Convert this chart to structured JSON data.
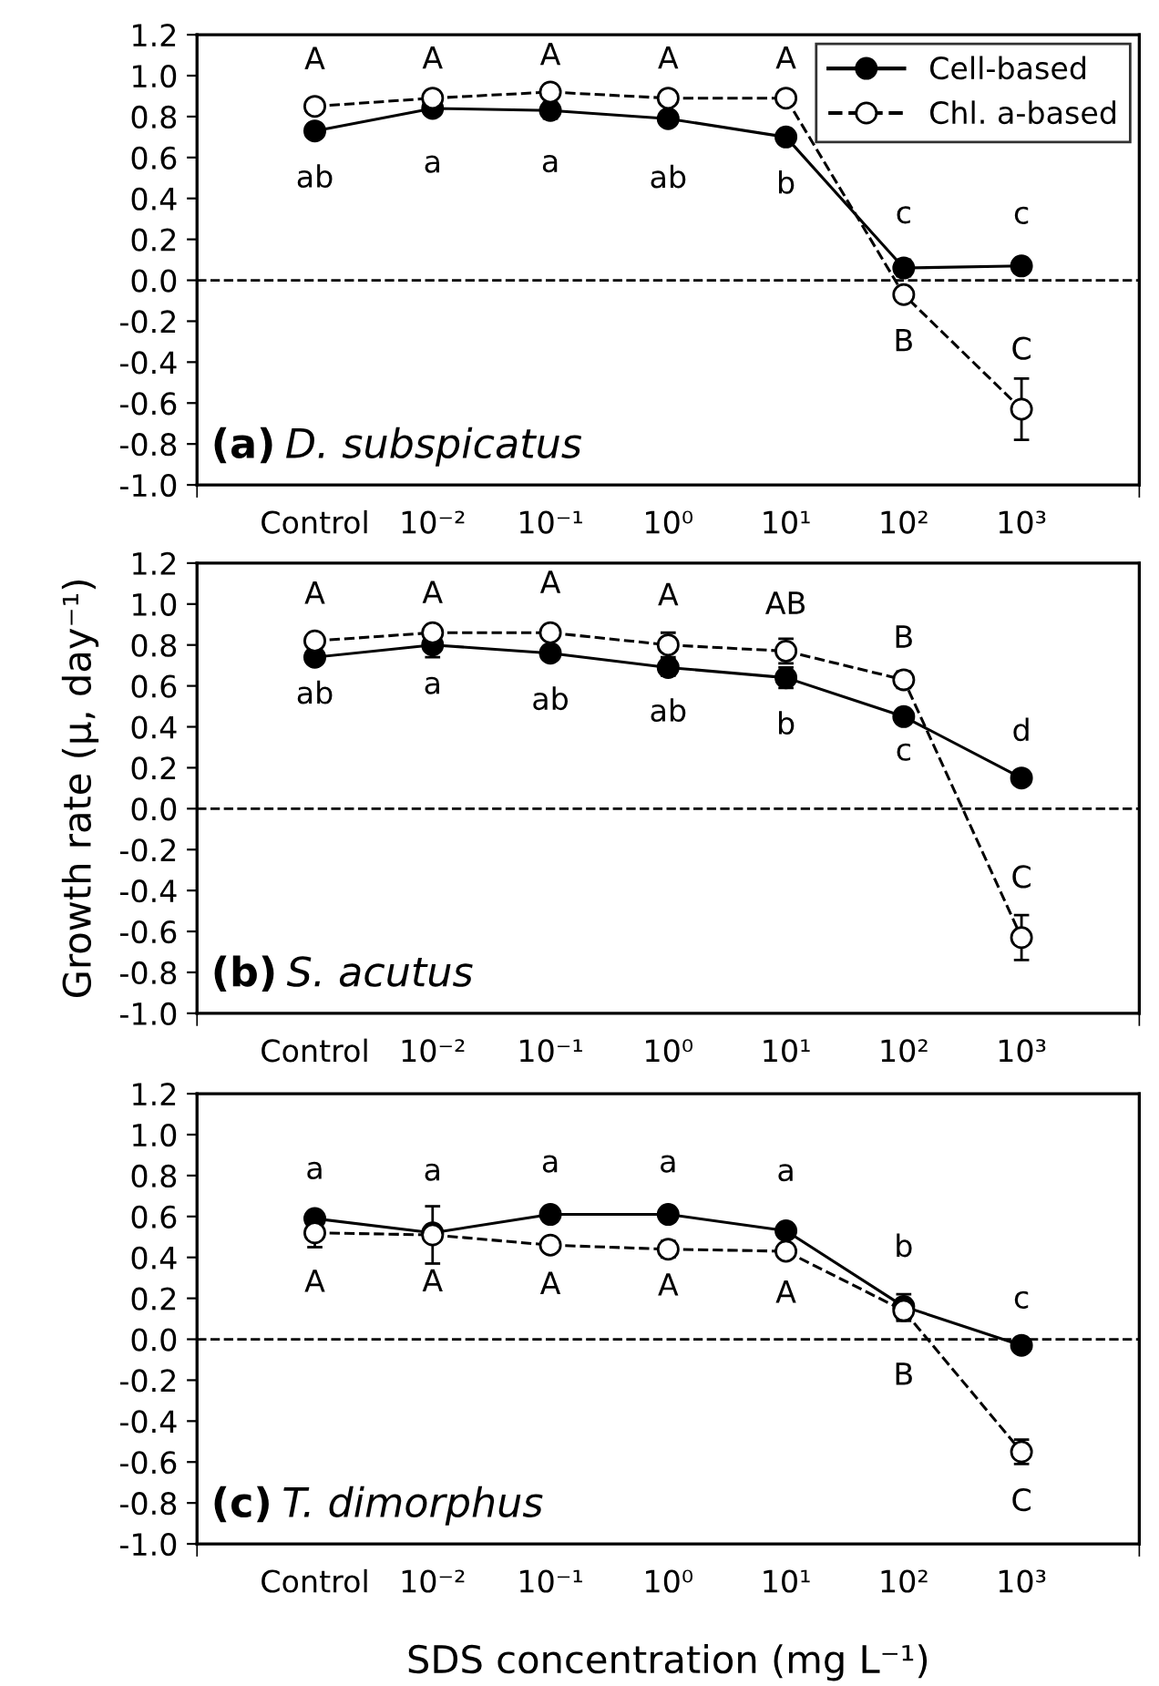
{
  "chart_data": [
    {
      "type": "line",
      "categories": [
        "Control",
        "10⁻²",
        "10⁻¹",
        "10⁰",
        "10¹",
        "10²",
        "10³"
      ],
      "ylim": [
        -1.0,
        1.2
      ],
      "yticks": [
        {
          "value": -1.0,
          "label": "-1.0"
        },
        {
          "value": -0.8,
          "label": "-0.8"
        },
        {
          "value": -0.6,
          "label": "-0.6"
        },
        {
          "value": -0.4,
          "label": "-0.4"
        },
        {
          "value": -0.2,
          "label": "-0.2"
        },
        {
          "value": 0.0,
          "label": "0.0"
        },
        {
          "value": 0.2,
          "label": "0.2"
        },
        {
          "value": 0.4,
          "label": "0.4"
        },
        {
          "value": 0.6,
          "label": "0.6"
        },
        {
          "value": 0.8,
          "label": "0.8"
        },
        {
          "value": 1.0,
          "label": "1.0"
        },
        {
          "value": 1.2,
          "label": "1.2"
        }
      ],
      "marker": "circle",
      "legend": "top right",
      "series": [
        {
          "name": "Cell-based",
          "color": "#000000",
          "line_style": "solid",
          "values": [
            0.73,
            0.84,
            0.83,
            0.79,
            0.7,
            0.06,
            0.07
          ],
          "errors": [
            0.02,
            0.02,
            0.04,
            0.03,
            0.02,
            0.04,
            0.01
          ]
        },
        {
          "name": "Chl. a-based",
          "color": "#ffffff",
          "line_style": "dashed",
          "values": [
            0.85,
            0.89,
            0.92,
            0.89,
            0.89,
            -0.07,
            -0.63
          ],
          "errors": [
            0.02,
            0.02,
            0.03,
            0.02,
            0.02,
            0.03,
            0.15
          ]
        }
      ],
      "ref_lines": [
        {
          "axis": "y",
          "value": 0,
          "color": "#000000",
          "line_style": "dashed"
        }
      ],
      "annotations": [
        "(a) D. subspicatus",
        "A",
        "A",
        "A",
        "A",
        "A",
        "B",
        "C",
        "ab",
        "a",
        "a",
        "ab",
        "b",
        "c",
        "c"
      ]
    },
    {
      "type": "line",
      "categories": [
        "Control",
        "10⁻²",
        "10⁻¹",
        "10⁰",
        "10¹",
        "10²",
        "10³"
      ],
      "ylim": [
        -1.0,
        1.2
      ],
      "yticks": [
        {
          "value": -1.0,
          "label": "-1.0"
        },
        {
          "value": -0.8,
          "label": "-0.8"
        },
        {
          "value": -0.6,
          "label": "-0.6"
        },
        {
          "value": -0.4,
          "label": "-0.4"
        },
        {
          "value": -0.2,
          "label": "-0.2"
        },
        {
          "value": 0.0,
          "label": "0.0"
        },
        {
          "value": 0.2,
          "label": "0.2"
        },
        {
          "value": 0.4,
          "label": "0.4"
        },
        {
          "value": 0.6,
          "label": "0.6"
        },
        {
          "value": 0.8,
          "label": "0.8"
        },
        {
          "value": 1.0,
          "label": "1.0"
        },
        {
          "value": 1.2,
          "label": "1.2"
        }
      ],
      "marker": "circle",
      "ylabel": "Growth rate (μ, day⁻¹)",
      "series": [
        {
          "color": "#000000",
          "line_style": "solid",
          "values": [
            0.74,
            0.8,
            0.76,
            0.69,
            0.64,
            0.45,
            0.15
          ],
          "errors": [
            0.02,
            0.06,
            0.03,
            0.04,
            0.05,
            0.03,
            0.01
          ]
        },
        {
          "color": "#ffffff",
          "line_style": "dashed",
          "values": [
            0.82,
            0.86,
            0.86,
            0.8,
            0.77,
            0.63,
            -0.63
          ],
          "errors": [
            0.02,
            0.02,
            0.02,
            0.06,
            0.06,
            0.04,
            0.11
          ]
        }
      ],
      "ref_lines": [
        {
          "axis": "y",
          "value": 0,
          "color": "#000000",
          "line_style": "dashed"
        }
      ],
      "annotations": [
        "(b) S. acutus",
        "A",
        "A",
        "A",
        "A",
        "AB",
        "B",
        "C",
        "ab",
        "a",
        "ab",
        "ab",
        "b",
        "c",
        "d"
      ]
    },
    {
      "type": "line",
      "categories": [
        "Control",
        "10⁻²",
        "10⁻¹",
        "10⁰",
        "10¹",
        "10²",
        "10³"
      ],
      "ylim": [
        -1.0,
        1.2
      ],
      "yticks": [
        {
          "value": -1.0,
          "label": "-1.0"
        },
        {
          "value": -0.8,
          "label": "-0.8"
        },
        {
          "value": -0.6,
          "label": "-0.6"
        },
        {
          "value": -0.4,
          "label": "-0.4"
        },
        {
          "value": -0.2,
          "label": "-0.2"
        },
        {
          "value": 0.0,
          "label": "0.0"
        },
        {
          "value": 0.2,
          "label": "0.2"
        },
        {
          "value": 0.4,
          "label": "0.4"
        },
        {
          "value": 0.6,
          "label": "0.6"
        },
        {
          "value": 0.8,
          "label": "0.8"
        },
        {
          "value": 1.0,
          "label": "1.0"
        },
        {
          "value": 1.2,
          "label": "1.2"
        }
      ],
      "marker": "circle",
      "xlabel": "SDS concentration (mg L⁻¹)",
      "series": [
        {
          "color": "#000000",
          "line_style": "solid",
          "values": [
            0.59,
            0.52,
            0.61,
            0.61,
            0.53,
            0.16,
            -0.03
          ],
          "errors": [
            0.02,
            0.02,
            0.03,
            0.02,
            0.02,
            0.06,
            0.01
          ]
        },
        {
          "color": "#ffffff",
          "line_style": "dashed",
          "values": [
            0.52,
            0.51,
            0.46,
            0.44,
            0.43,
            0.14,
            -0.55
          ],
          "errors": [
            0.07,
            0.14,
            0.02,
            0.04,
            null,
            0.05,
            0.06
          ]
        }
      ],
      "ref_lines": [
        {
          "axis": "y",
          "value": 0,
          "color": "#000000",
          "line_style": "dashed"
        }
      ],
      "annotations": [
        "(c) T. dimorphus",
        "A",
        "A",
        "A",
        "A",
        "A",
        "B",
        "C",
        "a",
        "a",
        "a",
        "a",
        "a",
        "b",
        "c"
      ]
    }
  ]
}
